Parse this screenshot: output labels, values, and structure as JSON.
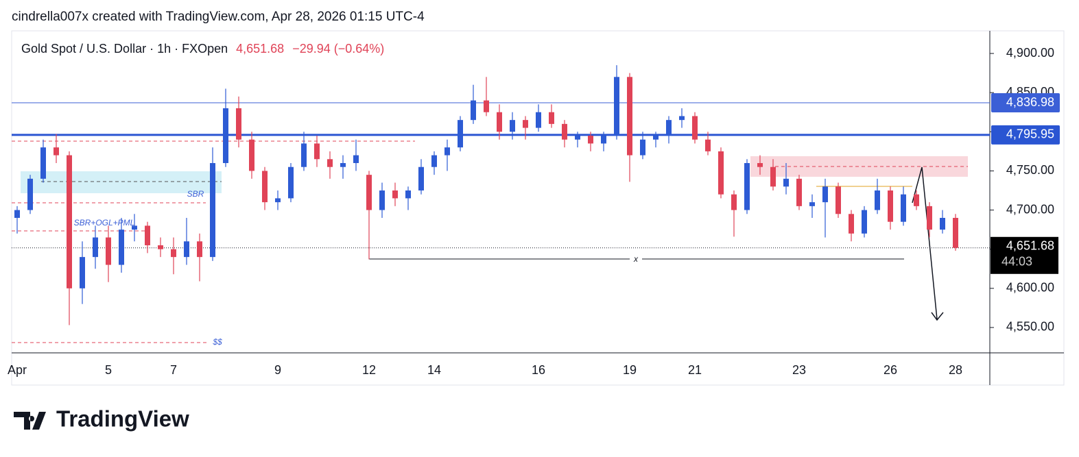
{
  "header": {
    "credit": "cindrella007x created with TradingView.com, Apr 28, 2026 01:15 UTC-4"
  },
  "chart_data": {
    "type": "candlestick",
    "title": "Gold Spot / U.S. Dollar · 1h · FXOpen",
    "last_price": {
      "value": 4651.68,
      "label": "4,651.68"
    },
    "change": "−29.94 (−0.64%)",
    "countdown": "44:03",
    "up_color": "#2d5bd4",
    "down_color": "#e04357",
    "categories": [
      "Apr",
      null,
      null,
      null,
      null,
      null,
      null,
      "5",
      null,
      null,
      null,
      null,
      "7",
      null,
      null,
      null,
      null,
      null,
      null,
      null,
      "9",
      null,
      null,
      null,
      null,
      null,
      null,
      "12",
      null,
      null,
      null,
      null,
      "14",
      null,
      null,
      null,
      null,
      null,
      null,
      null,
      "16",
      null,
      null,
      null,
      null,
      null,
      null,
      "19",
      null,
      null,
      null,
      null,
      "21",
      null,
      null,
      null,
      null,
      null,
      null,
      null,
      "23",
      null,
      null,
      null,
      null,
      null,
      null,
      "26",
      null,
      null,
      null,
      null,
      "28"
    ],
    "open": [
      4690,
      4700,
      4740,
      4780,
      4770,
      4600,
      4640,
      4665,
      4630,
      4675,
      4680,
      4655,
      4650,
      4640,
      4660,
      4640,
      4760,
      4830,
      4790,
      4750,
      4710,
      4715,
      4755,
      4785,
      4765,
      4755,
      4760,
      4745,
      4700,
      4725,
      4715,
      4725,
      4755,
      4770,
      4780,
      4815,
      4840,
      4825,
      4800,
      4815,
      4805,
      4825,
      4810,
      4790,
      4795,
      4785,
      4795,
      4870,
      4770,
      4790,
      4795,
      4815,
      4820,
      4790,
      4775,
      4720,
      4700,
      4760,
      4755,
      4730,
      4740,
      4705,
      4710,
      4730,
      4695,
      4670,
      4700,
      4725,
      4685,
      4720,
      4705,
      4675,
      4690
    ],
    "high": [
      4705,
      4745,
      4790,
      4797,
      4775,
      4660,
      4680,
      4680,
      4690,
      4695,
      4685,
      4665,
      4665,
      4690,
      4670,
      4780,
      4855,
      4845,
      4800,
      4755,
      4725,
      4760,
      4800,
      4795,
      4775,
      4770,
      4790,
      4750,
      4735,
      4735,
      4730,
      4765,
      4775,
      4790,
      4820,
      4860,
      4870,
      4835,
      4825,
      4820,
      4835,
      4835,
      4815,
      4800,
      4800,
      4800,
      4885,
      4875,
      4800,
      4800,
      4820,
      4830,
      4825,
      4800,
      4780,
      4725,
      4765,
      4770,
      4765,
      4760,
      4745,
      4720,
      4740,
      4735,
      4700,
      4705,
      4740,
      4730,
      4730,
      4725,
      4710,
      4700,
      4695
    ],
    "low": [
      4670,
      4695,
      4735,
      4760,
      4553,
      4580,
      4625,
      4608,
      4620,
      4660,
      4645,
      4640,
      4618,
      4630,
      4609,
      4635,
      4755,
      4780,
      4740,
      4700,
      4700,
      4710,
      4750,
      4755,
      4740,
      4740,
      4750,
      4637,
      4690,
      4705,
      4700,
      4720,
      4745,
      4750,
      4775,
      4810,
      4820,
      4790,
      4790,
      4790,
      4800,
      4805,
      4780,
      4780,
      4775,
      4775,
      4790,
      4736,
      4765,
      4780,
      4785,
      4805,
      4785,
      4770,
      4715,
      4666,
      4695,
      4745,
      4725,
      4720,
      4700,
      4690,
      4665,
      4690,
      4660,
      4665,
      4695,
      4675,
      4680,
      4700,
      4665,
      4670,
      4648
    ],
    "close": [
      4700,
      4740,
      4780,
      4770,
      4600,
      4640,
      4665,
      4630,
      4675,
      4680,
      4655,
      4650,
      4640,
      4660,
      4640,
      4760,
      4830,
      4790,
      4750,
      4710,
      4715,
      4755,
      4785,
      4765,
      4755,
      4760,
      4770,
      4700,
      4725,
      4715,
      4725,
      4755,
      4770,
      4780,
      4815,
      4840,
      4825,
      4800,
      4815,
      4805,
      4825,
      4810,
      4790,
      4795,
      4785,
      4795,
      4870,
      4770,
      4790,
      4795,
      4815,
      4820,
      4790,
      4775,
      4720,
      4700,
      4760,
      4755,
      4730,
      4740,
      4705,
      4710,
      4730,
      4695,
      4670,
      4700,
      4725,
      4685,
      4720,
      4705,
      4675,
      4690,
      4651.68
    ],
    "ylim": [
      4517.6,
      4928.9
    ],
    "yticks": [
      {
        "value": 4550,
        "label": "4,550.00"
      },
      {
        "value": 4600,
        "label": "4,600.00"
      },
      {
        "value": 4650,
        "label": "4,650.00"
      },
      {
        "value": 4700,
        "label": "4,700.00"
      },
      {
        "value": 4750,
        "label": "4,750.00"
      },
      {
        "value": 4800,
        "label": "4,800.00"
      },
      {
        "value": 4850,
        "label": "4,850.00"
      },
      {
        "value": 4900,
        "label": "4,900.00"
      }
    ],
    "price_lines": [
      {
        "value": 4836.98,
        "label": "4,836.98",
        "color": "#3b5fd6",
        "width": 1
      },
      {
        "value": 4795.95,
        "label": "4,795.95",
        "color": "#2a55d2",
        "width": 3
      }
    ],
    "annotations": [
      "SBR",
      "SBR+OGL+PML",
      "$$",
      "x"
    ]
  },
  "footer": {
    "brand": "TradingView"
  }
}
